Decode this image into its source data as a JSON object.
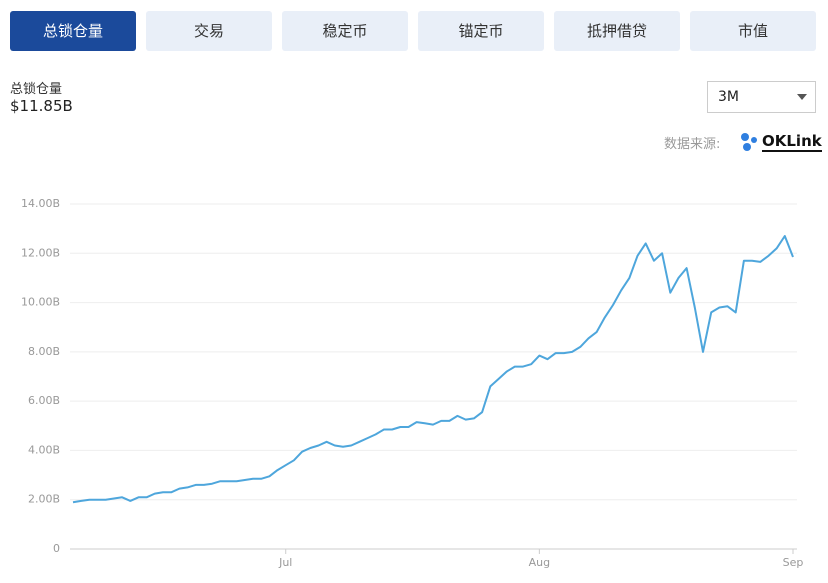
{
  "tabs": [
    "总锁仓量",
    "交易",
    "稳定币",
    "锚定币",
    "抵押借贷",
    "市值"
  ],
  "active_tab": 0,
  "summary": {
    "label": "总锁仓量",
    "value": "$11.85B"
  },
  "range_select": "3M",
  "source": {
    "label": "数据来源:",
    "brand": "OKLink"
  },
  "chart_data": {
    "type": "line",
    "color": "#4ea6dc",
    "grid": true,
    "ylim": [
      0,
      14
    ],
    "yticks": [
      0,
      {
        "value": 2,
        "label": "2.00B"
      },
      {
        "value": 4,
        "label": "4.00B"
      },
      {
        "value": 6,
        "label": "6.00B"
      },
      {
        "value": 8,
        "label": "8.00B"
      },
      {
        "value": 10,
        "label": "10.00B"
      },
      {
        "value": 12,
        "label": "12.00B"
      },
      {
        "value": 14,
        "label": "14.00B"
      }
    ],
    "categories": [
      null,
      null,
      null,
      null,
      null,
      null,
      null,
      null,
      null,
      null,
      null,
      null,
      null,
      null,
      null,
      null,
      null,
      null,
      null,
      null,
      null,
      null,
      null,
      null,
      null,
      null,
      "Jul",
      null,
      null,
      null,
      null,
      null,
      null,
      null,
      null,
      null,
      null,
      null,
      null,
      null,
      null,
      null,
      null,
      null,
      null,
      null,
      null,
      null,
      null,
      null,
      null,
      null,
      null,
      null,
      null,
      null,
      null,
      "Aug",
      null,
      null,
      null,
      null,
      null,
      null,
      null,
      null,
      null,
      null,
      null,
      null,
      null,
      null,
      null,
      null,
      null,
      null,
      null,
      null,
      null,
      null,
      null,
      null,
      null,
      null,
      null,
      null,
      null,
      null,
      "Sep"
    ],
    "values": [
      1.9,
      1.95,
      2.0,
      2.0,
      2.0,
      2.05,
      2.1,
      1.95,
      2.1,
      2.1,
      2.25,
      2.3,
      2.3,
      2.45,
      2.5,
      2.6,
      2.6,
      2.65,
      2.75,
      2.75,
      2.75,
      2.8,
      2.85,
      2.85,
      2.95,
      3.2,
      3.4,
      3.6,
      3.95,
      4.1,
      4.2,
      4.35,
      4.2,
      4.15,
      4.2,
      4.35,
      4.5,
      4.65,
      4.85,
      4.85,
      4.95,
      4.95,
      5.15,
      5.1,
      5.05,
      5.2,
      5.2,
      5.4,
      5.25,
      5.3,
      5.55,
      6.6,
      6.9,
      7.2,
      7.4,
      7.4,
      7.5,
      7.85,
      7.7,
      7.95,
      7.95,
      8.0,
      8.2,
      8.55,
      8.8,
      9.4,
      9.9,
      10.5,
      11.0,
      11.9,
      12.4,
      11.7,
      12.0,
      10.4,
      11.0,
      11.4,
      9.8,
      8.0,
      9.6,
      9.8,
      9.85,
      9.6,
      11.7,
      11.7,
      11.65,
      11.9,
      12.2,
      12.7,
      11.85
    ]
  }
}
